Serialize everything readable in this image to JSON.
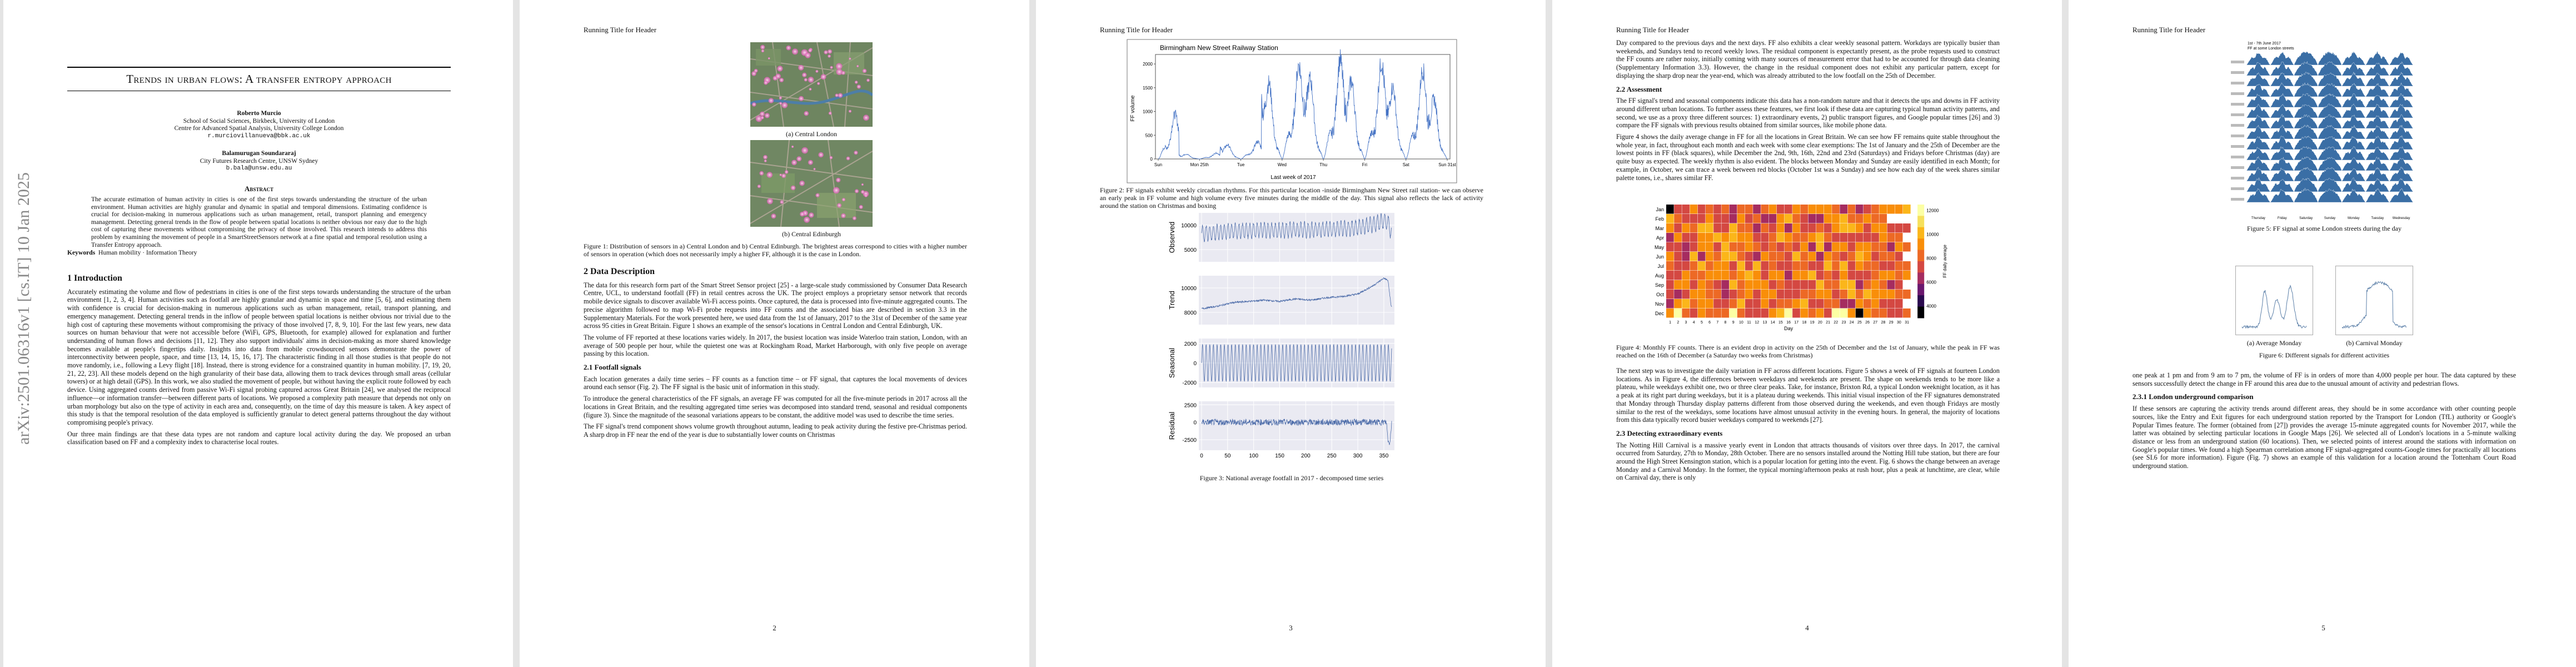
{
  "arxiv_stamp": "arXiv:2501.06316v1  [cs.IT]  10 Jan 2025",
  "running_header": "Running Title for Header",
  "pages": [
    "2",
    "3",
    "4",
    "5"
  ],
  "title": "Trends in urban flows: A transfer entropy approach",
  "authors": [
    {
      "name": "Roberto Murcio",
      "aff1": "School of Social Sciences, Birkbeck, University of London",
      "aff2": "Centre for Advanced Spatial Analysis, University College London",
      "email": "r.murciovillanueva@bbk.ac.uk"
    },
    {
      "name": "Balamurugan Soundararaj",
      "aff1": "City Futures Research Centre, UNSW Sydney",
      "aff2": "",
      "email": "b.bala@unsw.edu.au"
    }
  ],
  "abstract_heading": "Abstract",
  "abstract": "The accurate estimation of human activity in cities is one of the first steps towards understanding the structure of the urban environment. Human activities are highly granular and dynamic in spatial and temporal dimensions. Estimating confidence is crucial for decision-making in numerous applications such as urban management, retail, transport planning and emergency management. Detecting general trends in the flow of people between spatial locations is neither obvious nor easy due to the high cost of capturing these movements without compromising the privacy of those involved. This research intends to address this problem by examining the movement of people in a SmartStreetSensors network at a fine spatial and temporal resolution using a Transfer Entropy approach.",
  "keywords_label": "Keywords",
  "keywords": "Human mobility · Information Theory",
  "p1": {
    "intro_heading": "1   Introduction",
    "intro_1": "Accurately estimating the volume and flow of pedestrians in cities is one of the first steps towards understanding the structure of the urban environment [1, 2, 3, 4]. Human activities such as footfall are highly granular and dynamic in space and time [5, 6], and estimating them with confidence is crucial for decision-making in numerous applications such as urban management, retail, transport planning, and emergency management. Detecting general trends in the inflow of people between spatial locations is neither obvious nor trivial due to the high cost of capturing these movements without compromising the privacy of those involved [7, 8, 9, 10]. For the last few years, new data sources on human behaviour that were not accessible before (WiFi, GPS, Bluetooth, for example) allowed for explanation and further understanding of human flows and decisions [11, 12]. They also support individuals' aims in decision-making as more shared knowledge becomes available at people's fingertips daily. Insights into data from mobile crowdsourced sensors demonstrate the power of interconnectivity between people, space, and time [13, 14, 15, 16, 17]. The characteristic finding in all those studies is that people do not move randomly, i.e., following a Levy flight [18]. Instead, there is strong evidence for a constrained quantity in human mobility. [7, 19, 20, 21, 22, 23]. All these models depend on the high granularity of their base data, allowing them to track devices through small areas (cellular towers) or at high detail (GPS). In this work, we also studied the movement of people, but without having the explicit route followed by each device. Using aggregated counts derived from passive Wi-Fi signal probing captured across Great Britain [24], we analysed the reciprocal influence—or information transfer—between different parts of locations. We proposed a complexity path measure that depends not only on urban morphology but also on the type of activity in each area and, consequently, on the time of day this measure is taken. A key aspect of this study is that the temporal resolution of the data employed is sufficiently granular to detect general patterns throughout the day without compromising people's privacy.",
    "intro_2": "Our three main findings are that these data types are not random and capture local activity during the day. We proposed an urban classification based on FF and a complexity index to characterise local routes."
  },
  "p2": {
    "fig_a_cap": "(a) Central London",
    "fig_b_cap": "(b) Central Edinburgh",
    "fig1_cap": "Figure 1: Distribution of sensors in a) Central London and b) Central Edinburgh. The brightest areas correspond to cities with a higher number of sensors in operation (which does not necessarily imply a higher FF, although it is the case in London.",
    "data_heading": "2   Data Description",
    "data_1": "The data for this research form part of the Smart Street Sensor project [25] - a large-scale study commissioned by Consumer Data Research Centre, UCL, to understand footfall (FF) in retail centres across the UK. The project employs a proprietary sensor network that records mobile device signals to discover available Wi-Fi access points. Once captured, the data is processed into five-minute aggregated counts. The precise algorithm followed to map Wi-Fi probe requests into FF counts and the associated bias are described in section 3.3 in the Supplementary Materials. For the work presented here, we used data from the 1st of January, 2017 to the 31st of December of the same year across 95 cities in Great Britain. Figure 1 shows an example of the sensor's locations in Central London and Central Edinburgh, UK.",
    "data_2": "The volume of FF reported at these locations varies widely. In 2017, the busiest location was inside Waterloo train station, London, with an average of 500 people per hour, while the quietest one was at Rockingham Road, Market Harborough, with only five people on average passing by this location.",
    "sub_heading": "2.1   Footfall signals",
    "sub_1": "Each location generates a daily time series – FF counts as a function time – or FF signal, that captures the local movements of devices around each sensor (Fig. 2). The FF signal is the basic unit of information in this study.",
    "sub_2": "To introduce the general characteristics of the FF signals, an average FF was computed for all the five-minute periods in 2017 across all the locations in Great Britain, and the resulting aggregated time series was decomposed into standard trend, seasonal and residual components (figure 3). Since the magnitude of the seasonal variations appears to be constant, the additive model was used to describe the time series.",
    "sub_3": "The FF signal's trend component shows volume growth throughout autumn, leading to peak activity during the festive pre-Christmas period. A sharp drop in FF near the end of the year is due to substantially lower counts on Christmas"
  },
  "p3": {
    "fig2_cap": "Figure 2: FF signals exhibit weekly circadian rhythms. For this particular location -inside Birmingham New Street rail station- we can observe an early peak in FF volume and high volume every five minutes during the middle of the day. This signal also reflects the lack of activity around the station on Christmas and boxing",
    "fig3_cap": "Figure 3: National average footfall in 2017 - decomposed time series"
  },
  "p4": {
    "top_1": "Day compared to the previous days and the next days. FF also exhibits a clear weekly seasonal pattern. Workdays are typically busier than weekends, and Sundays tend to record weekly lows. The residual component is expectantly present, as the probe requests used to construct the FF counts are rather noisy, initially coming with many sources of measurement error that had to be accounted for through data cleaning (Supplementary Information 3.3). However, the change in the residual component does not exhibit any particular pattern, except for displaying the sharp drop near the year-end, which was already attributed to the low footfall on the 25th of December.",
    "assess_heading": "2.2   Assessment",
    "assess_1": "The FF signal's trend and seasonal components indicate this data has a non-random nature and that it detects the ups and downs in FF activity around different urban locations. To further assess these features, we first look if these data are capturing typical human activity patterns, and second, we use as a proxy three different sources: 1) extraordinary events, 2) public transport figures, and Google popular times [26] and 3) compare the FF signals with previous results obtained from similar sources, like mobile phone data.",
    "assess_2": "Figure 4 shows the daily average change in FF for all the locations in Great Britain. We can see how FF remains quite stable throughout the whole year, in fact, throughout each month and each week with some clear exemptions: The 1st of January and the 25th of December are the lowest points in FF (black squares), while December the 2nd, 9th, 16th, 22nd and 23rd (Saturdays) and Fridays before Christmas (day) are quite busy as expected. The weekly rhythm is also evident. The blocks between Monday and Sunday are easily identified in each Month; for example, in October, we can trace a week between red blocks (October 1st was a Sunday) and see how each day of the week shares similar palette tones, i.e., shares similar FF.",
    "fig4_cap": "Figure 4: Monthly FF counts. There is an evident drop in activity on the 25th of December and the 1st of January, while the peak in FF was reached on the 16th of December (a Saturday two weeks from Christmas)",
    "mid_1": "The next step was to investigate the daily variation in FF across different locations. Figure 5 shows a week of FF signals at fourteen London locations. As in Figure 4, the differences between weekdays and weekends are present. The shape on weekends tends to be more like a plateau, while weekdays exhibit one, two or three clear peaks. Take, for instance, Brixton Rd, a typical London weeknight location, as it has a peak at its right part during weekdays, but it is a plateau during weekends. This initial visual inspection of the FF signatures demonstrated that Monday through Thursday display patterns different from those observed during the weekends, and even though Fridays are mostly similar to the rest of the weekdays, some locations have almost unusual activity in the evening hours. In general, the majority of locations from this data typically record busier weekdays compared to weekends [27].",
    "det_heading": "2.3   Detecting extraordinary events",
    "det_1": "The Notting Hill Carnival is a massive yearly event in London that attracts thousands of visitors over three days. In 2017, the carnival occurred from Saturday, 27th to Monday, 28th October. There are no sensors installed around the Notting Hill tube station, but there are four around the High Street Kensington station, which is a popular location for getting into the event. Fig. 6 shows the change between an average Monday and a Carnival Monday. In the former, the typical morning/afternoon peaks at rush hour, plus a peak at lunchtime, are clear, while on Carnival day, there is only"
  },
  "p5": {
    "fig5_title": "1st - 7th June 2017",
    "fig5_sub": "FF at some London streets",
    "fig5_cap": "Figure 5: FF signal at some London streets during the day",
    "fig6a_cap": "(a) Average Monday",
    "fig6b_cap": "(b) Carnival Monday",
    "fig6_cap": "Figure 6: Different signals for different activities",
    "text_1": "one peak at 1 pm and from 9 am to 7 pm, the volume of FF is in orders of more than 4,000 people per hour. The data captured by these sensors successfully detect the change in FF around this area due to the unusual amount of activity and pedestrian flows.",
    "sub_heading": "2.3.1   London underground comparison",
    "text_2": "If these sensors are capturing the activity trends around different areas, they should be in some accordance with other counting people sources, like the Entry and Exit figures for each underground station reported by the Transport for London (TfL) authority or Google's Popular Times feature. The former (obtained from [27]) provides the average 15-minute aggregated counts for November 2017, while the latter was obtained by selecting particular locations in Google Maps [26]. We selected all of London's locations in a 5-minute walking distance or less from an underground station (60 locations). Then, we selected points of interest around the stations with information on Google's popular times. We found a high Spearman correlation among FF signal-aggregated counts-Google times for practically all locations (see SI.6 for more information). Figure (Fig. 7) shows an example of this validation for a location around the Tottenham Court Road underground station."
  },
  "chart_data": [
    {
      "type": "line",
      "title": "Birmingham New Street Railway Station",
      "xlabel": "Last week of 2017",
      "ylabel": "FF volume",
      "x_ticks": [
        "Sun",
        "Mon 25th",
        "Tue",
        "Wed",
        "Thu",
        "Fri",
        "Sat",
        "Sun 31st"
      ],
      "y_ticks": [
        "0",
        "500",
        "1000",
        "1500",
        "2000"
      ],
      "ylim": [
        0,
        2200
      ],
      "day_peaks": [
        900,
        120,
        350,
        1900,
        2000,
        1950,
        1800,
        1500
      ],
      "color": "#4472c4"
    },
    {
      "type": "line",
      "title": "",
      "xlabel": "",
      "panels": [
        {
          "label": "Observed",
          "ticks": [
            "5000",
            "10000"
          ],
          "ylim": [
            2500,
            12500
          ]
        },
        {
          "label": "Trend",
          "ticks": [
            "8000",
            "10000"
          ],
          "ylim": [
            7000,
            11000
          ]
        },
        {
          "label": "Seasonal",
          "ticks": [
            "-2000",
            "0",
            "2000"
          ],
          "ylim": [
            -2500,
            2500
          ]
        },
        {
          "label": "Residual",
          "ticks": [
            "-2500",
            "0",
            "2500"
          ],
          "ylim": [
            -4000,
            3000
          ]
        }
      ],
      "x_ticks": [
        "0",
        "50",
        "100",
        "150",
        "200",
        "250",
        "300",
        "350"
      ],
      "xlim": [
        0,
        365
      ],
      "trend_points": [
        [
          0,
          8300
        ],
        [
          30,
          8500
        ],
        [
          60,
          8800
        ],
        [
          90,
          8900
        ],
        [
          120,
          9000
        ],
        [
          150,
          8900
        ],
        [
          180,
          9100
        ],
        [
          210,
          9000
        ],
        [
          240,
          9200
        ],
        [
          270,
          9300
        ],
        [
          300,
          9500
        ],
        [
          330,
          10200
        ],
        [
          350,
          10800
        ],
        [
          358,
          10600
        ],
        [
          364,
          8500
        ]
      ],
      "color": "#4a6aa8"
    },
    {
      "type": "heatmap",
      "title": "",
      "xlabel": "Day",
      "ylabel": "Month",
      "colorbar_label": "FF daily average",
      "months": [
        "Jan",
        "Feb",
        "Mar",
        "Apr",
        "May",
        "Jun",
        "Jul",
        "Aug",
        "Sep",
        "Oct",
        "Nov",
        "Dec"
      ],
      "days": [
        "1",
        "2",
        "3",
        "4",
        "5",
        "6",
        "7",
        "8",
        "9",
        "10",
        "11",
        "12",
        "13",
        "14",
        "15",
        "16",
        "17",
        "18",
        "19",
        "20",
        "21",
        "22",
        "23",
        "24",
        "25",
        "26",
        "27",
        "28",
        "29",
        "30",
        "31"
      ],
      "colorbar_ticks": [
        "4000",
        "6000",
        "8000",
        "10000",
        "12000"
      ],
      "range": [
        3000,
        12500
      ]
    },
    {
      "type": "area",
      "title": "1st - 7th June 2017",
      "subtitle": "FF at some London streets",
      "x_ticks": [
        "Thursday",
        "Friday",
        "Saturday",
        "Sunday",
        "Monday",
        "Tuesday",
        "Wednesday"
      ],
      "rows": 14,
      "color": "#3a6ea5"
    },
    {
      "type": "line",
      "title": "",
      "panels": [
        {
          "name": "Average Monday"
        },
        {
          "name": "Carnival Monday"
        }
      ],
      "color": "#5b7fa8"
    }
  ]
}
